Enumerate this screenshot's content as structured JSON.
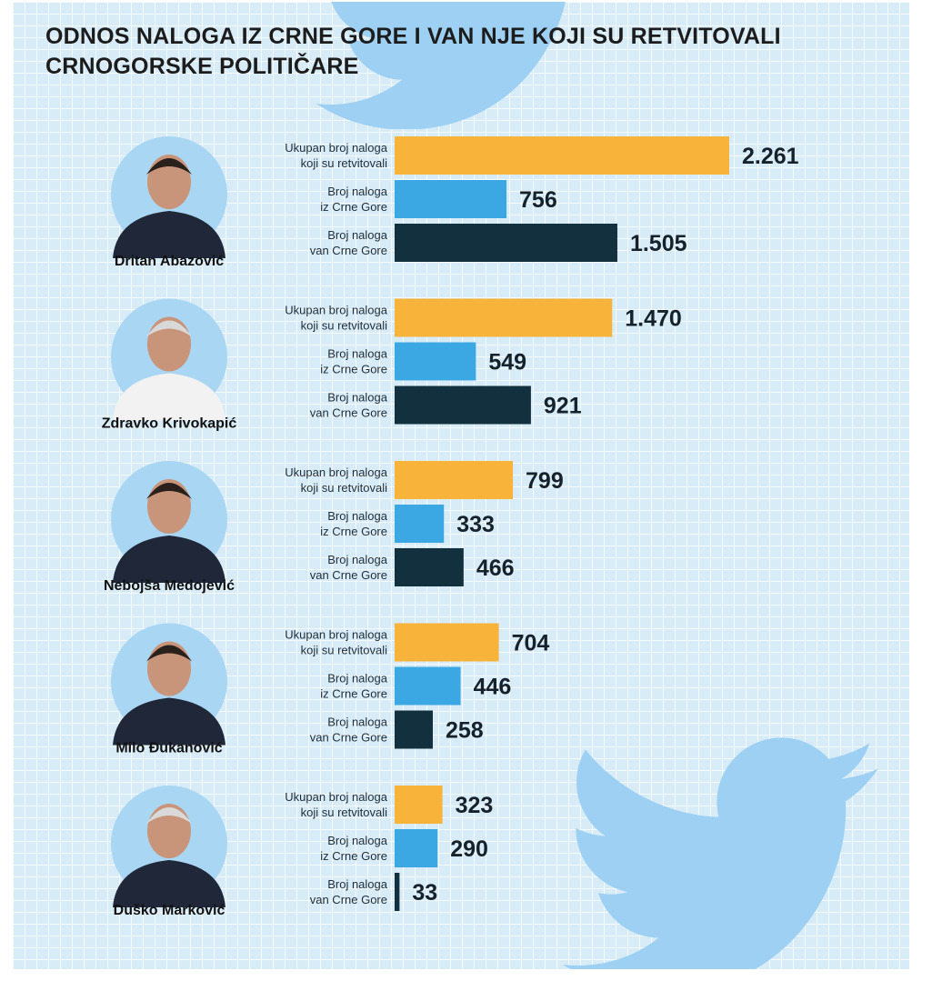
{
  "title": "ODNOS NALOGA IZ CRNE GORE I VAN NJE KOJI SU RETVITOVALI CRNOGORSKE POLITIČARE",
  "colors": {
    "background": "#d8ecf8",
    "bird": "#9dd0f2",
    "total": "#f8b33b",
    "montenegro": "#3ba7e3",
    "abroad": "#13303f"
  },
  "icons": [
    "twitter-bird-icon",
    "person-photo-icon"
  ],
  "chart_data": {
    "type": "bar",
    "orientation": "horizontal",
    "series_labels": {
      "total": [
        "Ukupan broj naloga",
        "koji su retvitovali"
      ],
      "montenegro": [
        "Broj naloga",
        "iz Crne Gore"
      ],
      "abroad": [
        "Broj naloga",
        "van Crne Gore"
      ]
    },
    "groups": [
      {
        "name": "Dritan Abazović",
        "total": 2261,
        "montenegro": 756,
        "abroad": 1505,
        "display": {
          "total": "2.261",
          "montenegro": "756",
          "abroad": "1.505"
        }
      },
      {
        "name": "Zdravko Krivokapić",
        "total": 1470,
        "montenegro": 549,
        "abroad": 921,
        "display": {
          "total": "1.470",
          "montenegro": "549",
          "abroad": "921"
        }
      },
      {
        "name": "Nebojša Medojević",
        "total": 799,
        "montenegro": 333,
        "abroad": 466,
        "display": {
          "total": "799",
          "montenegro": "333",
          "abroad": "466"
        }
      },
      {
        "name": "Milo Đukanović",
        "total": 704,
        "montenegro": 446,
        "abroad": 258,
        "display": {
          "total": "704",
          "montenegro": "446",
          "abroad": "258"
        }
      },
      {
        "name": "Duško Marković",
        "total": 323,
        "montenegro": 290,
        "abroad": 33,
        "display": {
          "total": "323",
          "montenegro": "290",
          "abroad": "33"
        }
      }
    ]
  }
}
